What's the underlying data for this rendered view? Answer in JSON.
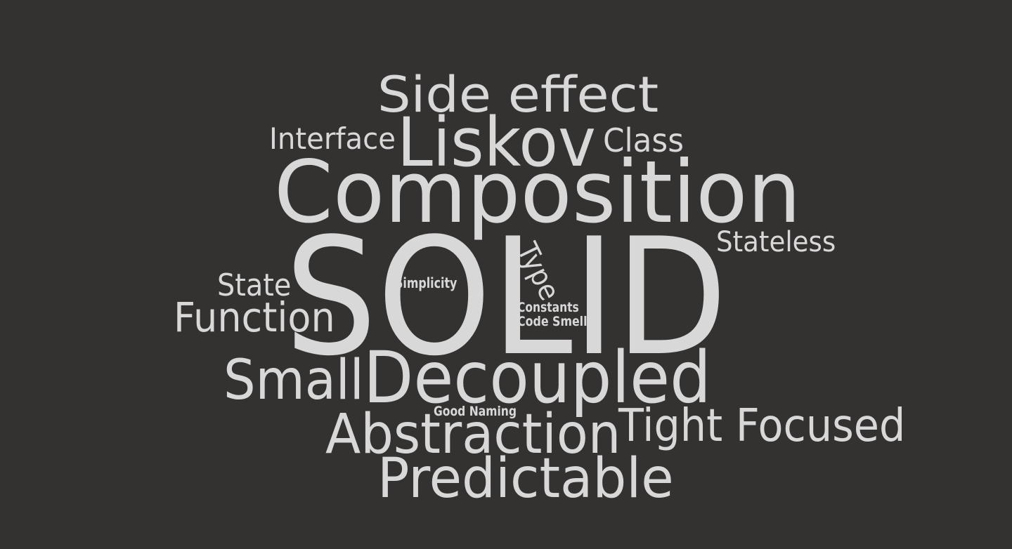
{
  "colors": {
    "background": "#343131",
    "text": "#d8d8d8"
  },
  "words": [
    {
      "key": "side-effect",
      "text": "Side effect"
    },
    {
      "key": "interface",
      "text": "Interface"
    },
    {
      "key": "liskov",
      "text": "Liskov"
    },
    {
      "key": "class",
      "text": "Class"
    },
    {
      "key": "composition",
      "text": "Composition"
    },
    {
      "key": "stateless",
      "text": "Stateless"
    },
    {
      "key": "solid",
      "text": "SOLID"
    },
    {
      "key": "state",
      "text": "State"
    },
    {
      "key": "simplicity",
      "text": "Simplicity"
    },
    {
      "key": "type",
      "text": "Type"
    },
    {
      "key": "function",
      "text": "Function"
    },
    {
      "key": "constants",
      "text": "Constants"
    },
    {
      "key": "code-smell",
      "text": "Code Smell"
    },
    {
      "key": "small",
      "text": "Small"
    },
    {
      "key": "decoupled",
      "text": "Decoupled"
    },
    {
      "key": "good-naming",
      "text": "Good Naming"
    },
    {
      "key": "abstraction",
      "text": "Abstraction"
    },
    {
      "key": "tight-focused",
      "text": "Tight Focused"
    },
    {
      "key": "predictable",
      "text": "Predictable"
    }
  ]
}
